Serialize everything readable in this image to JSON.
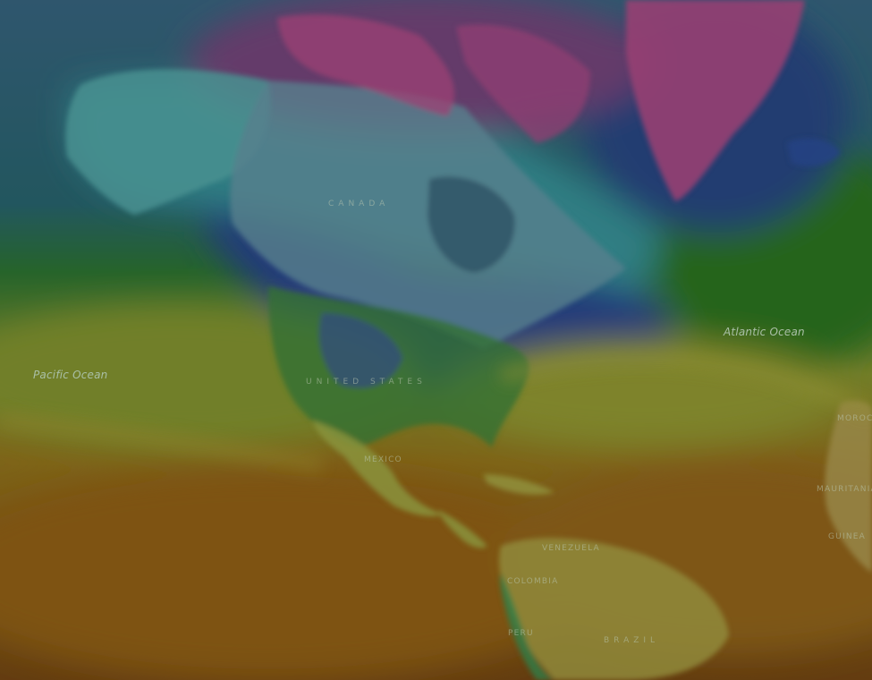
{
  "layer": {
    "legend_colors": [
      "#b0427a",
      "#8a5a86",
      "#2e8a92",
      "#2c4f90",
      "#2e7c2e",
      "#a8a83c",
      "#a46c1c"
    ]
  },
  "labels": {
    "oceans": {
      "pacific": "Pacific Ocean",
      "atlantic": "Atlantic Ocean"
    },
    "countries": {
      "canada": "CANADA",
      "united_states": "UNITED STATES",
      "mexico": "MEXICO",
      "venezuela": "VENEZUELA",
      "colombia": "COLOMBIA",
      "peru": "PERU",
      "brazil": "BRAZIL",
      "morocco": "MOROC",
      "mauritania": "MAURITANIA",
      "guinea": "GUINEA"
    }
  },
  "colors": {
    "ocean_label": "#a9bfa6",
    "country_label": "#b9c6b0",
    "land_overlay": "#ffffff"
  }
}
